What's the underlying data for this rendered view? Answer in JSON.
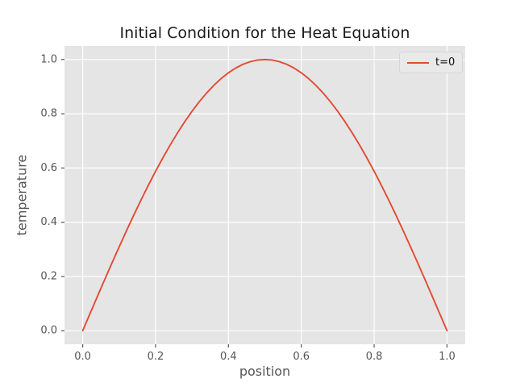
{
  "colors": {
    "figure_bg": "#FFFFFF",
    "plot_bg": "#E5E5E5",
    "grid": "#FFFFFF",
    "tick_mark": "#555555",
    "tick_label": "#555555",
    "axis_label": "#555555",
    "title_text": "#1A1A1A",
    "line": "#E24A33",
    "legend_bg": "#E9E9E9",
    "legend_border": "#D6D6D6"
  },
  "chart_data": {
    "type": "line",
    "title": "Initial Condition for the Heat Equation",
    "xlabel": "position",
    "ylabel": "temperature",
    "xlim": [
      -0.05,
      1.05
    ],
    "ylim": [
      -0.05,
      1.05
    ],
    "grid": true,
    "xticks": [
      0.0,
      0.2,
      0.4,
      0.6,
      0.8,
      1.0
    ],
    "xtick_labels": [
      "0.0",
      "0.2",
      "0.4",
      "0.6",
      "0.8",
      "1.0"
    ],
    "yticks": [
      0.0,
      0.2,
      0.4,
      0.6,
      0.8,
      1.0
    ],
    "ytick_labels": [
      "0.0",
      "0.2",
      "0.4",
      "0.6",
      "0.8",
      "1.0"
    ],
    "legend": {
      "position": "upper right",
      "entries": [
        {
          "label": "t=0",
          "color": "#E24A33"
        }
      ]
    },
    "series": [
      {
        "name": "t=0",
        "color": "#E24A33",
        "x": [
          0.0,
          0.02,
          0.04,
          0.06,
          0.08,
          0.1,
          0.12,
          0.14,
          0.16,
          0.18,
          0.2,
          0.22,
          0.24,
          0.26,
          0.28,
          0.3,
          0.32,
          0.34,
          0.36,
          0.38,
          0.4,
          0.42,
          0.44,
          0.46,
          0.48,
          0.5,
          0.52,
          0.54,
          0.56,
          0.58,
          0.6,
          0.62,
          0.64,
          0.66,
          0.68,
          0.7,
          0.72,
          0.74,
          0.76,
          0.78,
          0.8,
          0.82,
          0.84,
          0.86,
          0.88,
          0.9,
          0.92,
          0.94,
          0.96,
          0.98,
          1.0
        ],
        "y": [
          0.0,
          0.0628,
          0.1253,
          0.1874,
          0.2487,
          0.309,
          0.3681,
          0.4258,
          0.4818,
          0.5358,
          0.5878,
          0.6374,
          0.6845,
          0.729,
          0.7705,
          0.809,
          0.8443,
          0.8763,
          0.9048,
          0.9298,
          0.9511,
          0.9686,
          0.9823,
          0.9921,
          0.998,
          1.0,
          0.998,
          0.9921,
          0.9823,
          0.9686,
          0.9511,
          0.9298,
          0.9048,
          0.8763,
          0.8443,
          0.809,
          0.7705,
          0.729,
          0.6845,
          0.6374,
          0.5878,
          0.5358,
          0.4818,
          0.4258,
          0.3681,
          0.309,
          0.2487,
          0.1874,
          0.1253,
          0.0628,
          0.0
        ]
      }
    ]
  }
}
